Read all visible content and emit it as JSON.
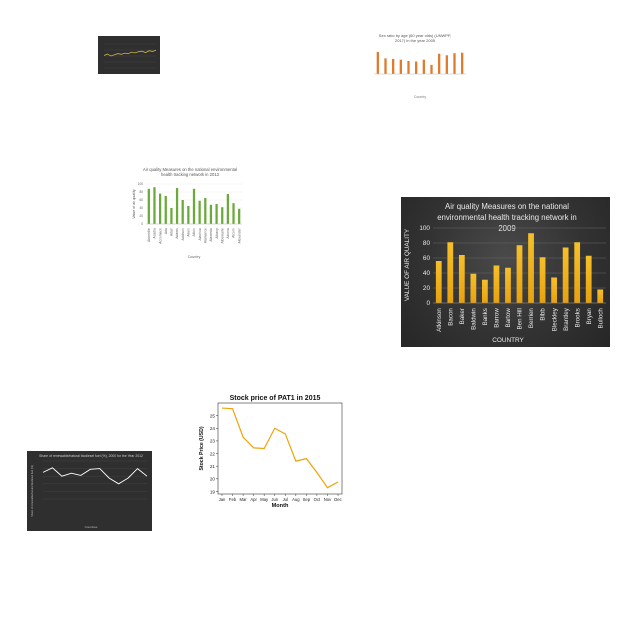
{
  "chart_data": [
    {
      "type": "line",
      "title": "",
      "xlabel": "",
      "ylabel": "",
      "series": [
        {
          "values": [
            0.52,
            0.58,
            0.5,
            0.55,
            0.6,
            0.57,
            0.62,
            0.6,
            0.66,
            0.63,
            0.68,
            0.7,
            0.64,
            0.72,
            0.69,
            0.74
          ]
        }
      ],
      "ylim": [
        0,
        1
      ],
      "grid": true,
      "colors": {
        "line": "#c9b34a",
        "background": "#2f2f2f"
      }
    },
    {
      "type": "bar",
      "title": "Sex ratio by age (60 year olds) (UNWPP, 2017) in the year 2005",
      "xlabel": "Country",
      "ylabel": "",
      "categories": [
        "",
        "",
        "",
        "",
        "",
        "",
        "",
        "",
        "",
        "",
        "",
        ""
      ],
      "values": [
        0.85,
        0.6,
        0.58,
        0.55,
        0.5,
        0.48,
        0.55,
        0.35,
        0.78,
        0.72,
        0.8,
        0.82
      ],
      "ylim": [
        0,
        1
      ],
      "grid": true,
      "colors": {
        "bar": "#e07b2e"
      }
    },
    {
      "type": "bar",
      "title": "Air quality Measures on the national environmental health tracking network in 2013",
      "xlabel": "Country",
      "ylabel": "Value of air quality",
      "categories": [
        "Abbeville",
        "Acadia",
        "Accomack",
        "Ada",
        "Adair",
        "Adams",
        "Addison",
        "Aiken",
        "Aitkin",
        "Alachua",
        "Alamance",
        "Alameda",
        "Albany",
        "Albemarle",
        "Alcona",
        "Alcorn",
        "Alexander"
      ],
      "values": [
        88,
        92,
        76,
        70,
        40,
        90,
        60,
        45,
        88,
        58,
        65,
        48,
        50,
        42,
        75,
        52,
        38
      ],
      "ylim": [
        0,
        100
      ],
      "grid": true,
      "colors": {
        "bar": "#6aaa3a"
      }
    },
    {
      "type": "bar",
      "title": "Air quality Measures on the national environmental health tracking network in 2009",
      "xlabel": "COUNTRY",
      "ylabel": "VALUE OF AIR QUALITY",
      "categories": [
        "Atkinson",
        "Bacon",
        "Baker",
        "Baldwin",
        "Banks",
        "Barrow",
        "Bartow",
        "Ben Hill",
        "Berrien",
        "Bibb",
        "Bleckley",
        "Brantley",
        "Brooks",
        "Bryan",
        "Bulloch"
      ],
      "values": [
        56,
        81,
        64,
        39,
        31,
        50,
        47,
        77,
        93,
        61,
        34,
        74,
        81,
        63,
        18
      ],
      "ylim": [
        0,
        100
      ],
      "yticks": [
        0,
        20,
        40,
        60,
        80,
        100
      ],
      "grid": true,
      "colors": {
        "bar_top": "#f5c02a",
        "bar_bottom": "#e8a10f",
        "text": "#e8e8e8"
      }
    },
    {
      "type": "line",
      "title": "Share of renewable/natural biodiesel fuel (%), 2000 for the Year 2012",
      "xlabel": "Countries",
      "ylabel": "Share of renewable/natural biodiesel fuel (%)",
      "series": [
        {
          "values": [
            0.7,
            0.82,
            0.6,
            0.68,
            0.62,
            0.78,
            0.8,
            0.55,
            0.4,
            0.55,
            0.8,
            0.6
          ]
        }
      ],
      "ylim": [
        0,
        1
      ],
      "grid": true,
      "colors": {
        "line": "#ffffff",
        "background": "#333333"
      }
    },
    {
      "type": "line",
      "title": "Stock price of PAT1 in 2015",
      "xlabel": "Month",
      "ylabel": "Stock Price (USD)",
      "categories": [
        "Jan",
        "Feb",
        "Mar",
        "Apr",
        "May",
        "Jun",
        "Jul",
        "Aug",
        "Sep",
        "Oct",
        "Nov",
        "Dec"
      ],
      "series": [
        {
          "name": "PAT1",
          "values": [
            25.6,
            25.55,
            23.3,
            22.45,
            22.4,
            24.0,
            23.55,
            21.4,
            21.6,
            20.5,
            19.3,
            19.75
          ]
        }
      ],
      "ylim": [
        18.8,
        26.0
      ],
      "yticks": [
        19,
        20,
        21,
        22,
        23,
        24,
        25
      ],
      "grid": false,
      "colors": {
        "line": "#f0a30a"
      }
    }
  ]
}
